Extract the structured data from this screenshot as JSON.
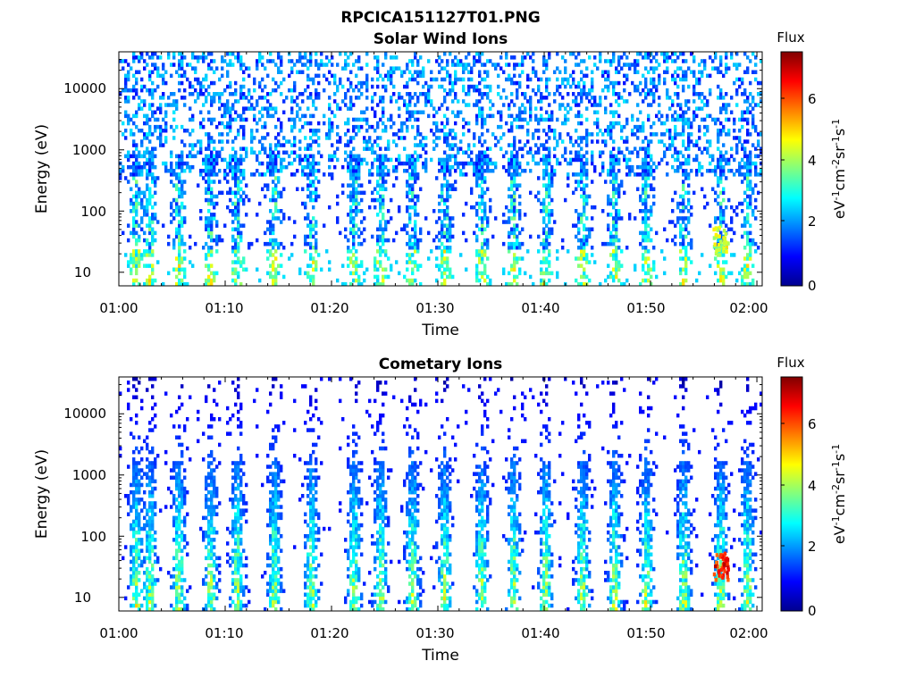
{
  "figure": {
    "filename": "RPCICA151127T01.PNG"
  },
  "chart_data": [
    {
      "type": "heatmap",
      "title": "Solar Wind Ions",
      "xlabel": "Time",
      "ylabel": "Energy (eV)",
      "yscale": "log",
      "ylim": [
        6,
        40000
      ],
      "xlim": [
        "01:00",
        "02:00"
      ],
      "xticks": [
        "01:00",
        "01:10",
        "01:20",
        "01:30",
        "01:40",
        "01:50",
        "02:00"
      ],
      "yticks": [
        "10",
        "100",
        "1000",
        "10000"
      ],
      "colorbar": {
        "label": "eV^-1cm^-2sr^-1s^-1",
        "title": "Flux",
        "range": [
          0,
          7.3
        ],
        "ticks": [
          "0",
          "2",
          "4",
          "6"
        ],
        "colormap": "jet"
      },
      "bursts_minutes": [
        1.5,
        2.8,
        5.5,
        8.5,
        11,
        14.5,
        18,
        22,
        24.5,
        27.5,
        30.5,
        34,
        37,
        40,
        43.5,
        46.5,
        49.5,
        53,
        56.5,
        59
      ],
      "peak_burst": {
        "minute": 56.5,
        "energy_ev": 30,
        "flux": 5
      }
    },
    {
      "type": "heatmap",
      "title": "Cometary Ions",
      "xlabel": "Time",
      "ylabel": "Energy (eV)",
      "yscale": "log",
      "ylim": [
        6,
        40000
      ],
      "xlim": [
        "01:00",
        "02:00"
      ],
      "xticks": [
        "01:00",
        "01:10",
        "01:20",
        "01:30",
        "01:40",
        "01:50",
        "02:00"
      ],
      "yticks": [
        "10",
        "100",
        "1000",
        "10000"
      ],
      "colorbar": {
        "label": "eV^-1cm^-2sr^-1s^-1",
        "title": "Flux",
        "range": [
          0,
          7.3
        ],
        "ticks": [
          "0",
          "2",
          "4",
          "6"
        ],
        "colormap": "jet"
      },
      "bursts_minutes": [
        1.5,
        2.8,
        5.5,
        8.5,
        11,
        14.5,
        18,
        22,
        24.5,
        27.5,
        30.5,
        34,
        37,
        40,
        43.5,
        46.5,
        49.5,
        53,
        56.5,
        59
      ],
      "peak_burst": {
        "minute": 56.5,
        "energy_ev": 30,
        "flux": 7
      }
    }
  ]
}
